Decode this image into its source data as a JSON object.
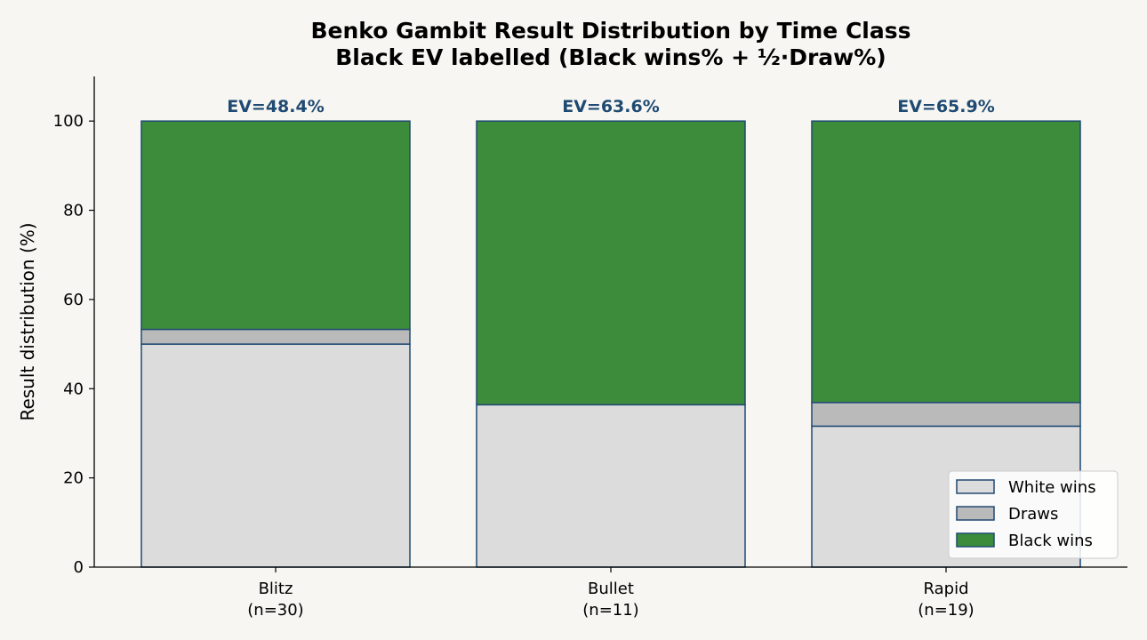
{
  "chart_data": {
    "type": "bar",
    "stacked": true,
    "title": "Benko Gambit Result Distribution by Time Class",
    "subtitle": "Black EV labelled (Black wins% + ½·Draw%)",
    "xlabel": "",
    "ylabel": "Result distribution (%)",
    "ylim": [
      0,
      110
    ],
    "yticks": [
      0,
      20,
      40,
      60,
      80,
      100
    ],
    "categories": [
      "Blitz",
      "Bullet",
      "Rapid"
    ],
    "category_counts": [
      "(n=30)",
      "(n=11)",
      "(n=19)"
    ],
    "series": [
      {
        "name": "White wins",
        "values": [
          50.0,
          36.4,
          31.6
        ],
        "color": "#dcdcdc"
      },
      {
        "name": "Draws",
        "values": [
          3.3,
          0.0,
          5.3
        ],
        "color": "#bababa"
      },
      {
        "name": "Black wins",
        "values": [
          46.7,
          63.6,
          63.1
        ],
        "color": "#3c8c3c"
      }
    ],
    "bar_labels": [
      "EV=48.4%",
      "EV=63.6%",
      "EV=65.9%"
    ],
    "edge_color": "#1f4a72",
    "label_color": "#1f4a72",
    "grid": false,
    "legend_position": "lower-right"
  }
}
